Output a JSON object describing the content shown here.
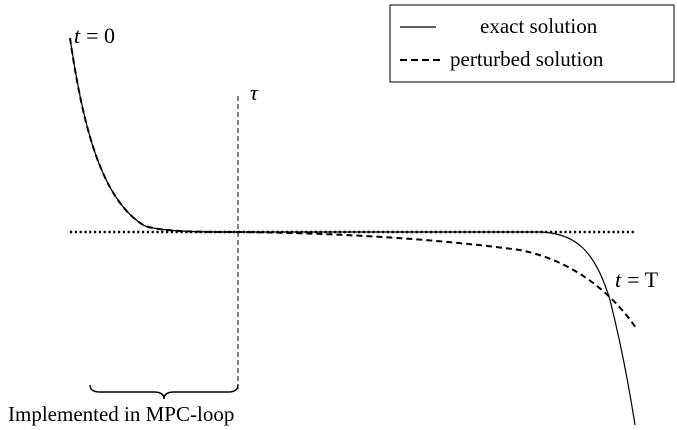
{
  "annotations": {
    "t_start_var": "t",
    "t_start_rhs": "= 0",
    "tau": "τ",
    "t_end_var": "t",
    "t_end_rhs": "= T"
  },
  "legend": {
    "exact_label": "exact solution",
    "perturbed_label": "perturbed solution"
  },
  "caption": "Implemented in MPC-loop"
}
